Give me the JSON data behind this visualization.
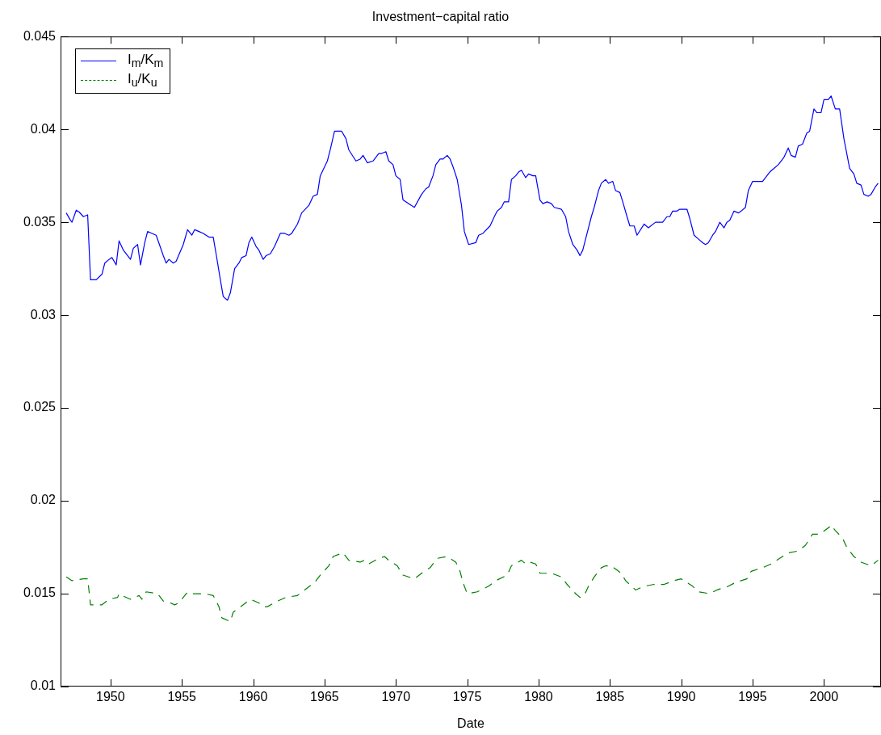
{
  "chart_data": {
    "type": "line",
    "title": "Investment−capital ratio",
    "xlabel": "Date",
    "xlim": [
      1946.5,
      2004
    ],
    "xticks": [
      1950,
      1955,
      1960,
      1965,
      1970,
      1975,
      1980,
      1985,
      1990,
      1995,
      2000
    ],
    "ylim": [
      0.01,
      0.045
    ],
    "yticks": [
      0.01,
      0.015,
      0.02,
      0.025,
      0.03,
      0.035,
      0.04,
      0.045
    ],
    "grid": false,
    "legend": "top left",
    "marker": "none",
    "series": [
      {
        "name": "I$_{m}$/K$_{m}$",
        "color": "#0000ff",
        "line_style": "solid",
        "x": [
          1946.9,
          1947.2,
          1947.3,
          1947.6,
          1947.8,
          1948.1,
          1948.4,
          1948.6,
          1949.0,
          1949.4,
          1949.6,
          1949.9,
          1950.1,
          1950.4,
          1950.6,
          1950.9,
          1951.4,
          1951.6,
          1951.9,
          1952.1,
          1952.4,
          1952.6,
          1952.9,
          1953.2,
          1953.7,
          1953.9,
          1954.1,
          1954.4,
          1954.6,
          1955.1,
          1955.4,
          1955.7,
          1955.9,
          1956.2,
          1956.5,
          1956.7,
          1956.9,
          1957.2,
          1957.4,
          1957.7,
          1957.9,
          1958.2,
          1958.4,
          1958.7,
          1959.0,
          1959.2,
          1959.5,
          1959.7,
          1959.9,
          1960.2,
          1960.4,
          1960.7,
          1960.9,
          1961.2,
          1961.5,
          1961.9,
          1962.2,
          1962.5,
          1962.7,
          1963.1,
          1963.4,
          1963.9,
          1964.2,
          1964.5,
          1964.7,
          1965.2,
          1965.4,
          1965.7,
          1966.2,
          1966.5,
          1966.7,
          1967.2,
          1967.5,
          1967.7,
          1968.0,
          1968.4,
          1968.8,
          1969.0,
          1969.3,
          1969.5,
          1969.8,
          1970.0,
          1970.3,
          1970.5,
          1971.3,
          1971.8,
          1972.1,
          1972.3,
          1972.6,
          1972.8,
          1973.1,
          1973.3,
          1973.6,
          1973.8,
          1974.0,
          1974.3,
          1974.6,
          1974.8,
          1975.1,
          1975.6,
          1975.8,
          1976.1,
          1976.6,
          1976.9,
          1977.1,
          1977.4,
          1977.6,
          1977.9,
          1978.1,
          1978.4,
          1978.6,
          1978.8,
          1979.1,
          1979.3,
          1979.6,
          1979.8,
          1980.1,
          1980.3,
          1980.6,
          1980.9,
          1981.1,
          1981.6,
          1981.9,
          1982.1,
          1982.4,
          1982.7,
          1982.9,
          1983.1,
          1983.4,
          1983.7,
          1983.9,
          1984.2,
          1984.4,
          1984.7,
          1984.9,
          1985.2,
          1985.4,
          1985.7,
          1985.9,
          1986.2,
          1986.4,
          1986.7,
          1986.9,
          1987.4,
          1987.7,
          1988.2,
          1988.7,
          1989.0,
          1989.2,
          1989.4,
          1989.7,
          1989.9,
          1990.2,
          1990.4,
          1990.6,
          1990.9,
          1991.2,
          1991.5,
          1991.7,
          1991.9,
          1992.2,
          1992.4,
          1992.7,
          1993.0,
          1993.2,
          1993.4,
          1993.7,
          1994.0,
          1994.2,
          1994.5,
          1994.7,
          1995.0,
          1995.7,
          1996.2,
          1996.5,
          1996.8,
          1997.0,
          1997.2,
          1997.5,
          1997.7,
          1998.0,
          1998.2,
          1998.5,
          1998.8,
          1999.0,
          1999.3,
          1999.5,
          1999.8,
          2000.0,
          2000.3,
          2000.5,
          2000.8,
          2001.1,
          2001.4,
          2001.8,
          2002.1,
          2002.3,
          2002.6,
          2002.8,
          2003.1,
          2003.3,
          2003.6,
          2003.8
        ],
        "values": [
          0.0355,
          0.0351,
          0.035,
          0.03565,
          0.03555,
          0.0353,
          0.0354,
          0.0319,
          0.0319,
          0.0322,
          0.0328,
          0.033,
          0.0331,
          0.0327,
          0.034,
          0.0335,
          0.033,
          0.0336,
          0.0338,
          0.0327,
          0.0339,
          0.0345,
          0.0344,
          0.0343,
          0.0332,
          0.0328,
          0.033,
          0.0328,
          0.0329,
          0.0338,
          0.0346,
          0.0343,
          0.0346,
          0.0345,
          0.0344,
          0.0343,
          0.0342,
          0.0342,
          0.0333,
          0.0319,
          0.031,
          0.0308,
          0.0312,
          0.0325,
          0.0328,
          0.0331,
          0.0332,
          0.0339,
          0.0342,
          0.0337,
          0.0335,
          0.033,
          0.0332,
          0.0333,
          0.0337,
          0.0344,
          0.0344,
          0.0343,
          0.0344,
          0.0349,
          0.0355,
          0.0359,
          0.0364,
          0.0365,
          0.0375,
          0.0383,
          0.0389,
          0.0399,
          0.0399,
          0.0395,
          0.0389,
          0.0383,
          0.0384,
          0.0386,
          0.0382,
          0.0383,
          0.0387,
          0.0387,
          0.0388,
          0.0383,
          0.0381,
          0.0375,
          0.0373,
          0.0362,
          0.0358,
          0.0365,
          0.0368,
          0.0369,
          0.0375,
          0.0381,
          0.0384,
          0.0384,
          0.0386,
          0.0384,
          0.038,
          0.0373,
          0.0359,
          0.0345,
          0.0338,
          0.0339,
          0.0343,
          0.0344,
          0.0348,
          0.0353,
          0.0356,
          0.0358,
          0.0361,
          0.0361,
          0.0373,
          0.0375,
          0.0377,
          0.0378,
          0.0374,
          0.0376,
          0.0375,
          0.0375,
          0.0362,
          0.036,
          0.0361,
          0.036,
          0.0358,
          0.0357,
          0.0353,
          0.0345,
          0.0338,
          0.0335,
          0.0332,
          0.0335,
          0.0344,
          0.0353,
          0.0358,
          0.0367,
          0.0371,
          0.0373,
          0.0371,
          0.0372,
          0.0367,
          0.0366,
          0.0361,
          0.0353,
          0.0348,
          0.0348,
          0.0343,
          0.0349,
          0.0347,
          0.035,
          0.035,
          0.0353,
          0.0353,
          0.0356,
          0.0356,
          0.0357,
          0.0357,
          0.0357,
          0.0352,
          0.0343,
          0.0341,
          0.0339,
          0.0338,
          0.0339,
          0.0343,
          0.0345,
          0.035,
          0.0347,
          0.035,
          0.0351,
          0.0356,
          0.0355,
          0.0356,
          0.0358,
          0.0367,
          0.0372,
          0.0372,
          0.0377,
          0.0379,
          0.0381,
          0.0383,
          0.0385,
          0.039,
          0.0386,
          0.0385,
          0.0391,
          0.0392,
          0.0398,
          0.0399,
          0.0411,
          0.0409,
          0.0409,
          0.0416,
          0.0416,
          0.0418,
          0.0411,
          0.0411,
          0.0395,
          0.0379,
          0.0376,
          0.0371,
          0.037,
          0.0365,
          0.0364,
          0.0365,
          0.0369,
          0.0371
        ]
      },
      {
        "name": "I$_{u}$/K$_{u}$",
        "color": "#008000",
        "line_style": "dashed",
        "x": [
          1946.9,
          1947.3,
          1948.1,
          1948.4,
          1948.6,
          1949.4,
          1949.9,
          1950.5,
          1950.6,
          1950.8,
          1951.4,
          1952.0,
          1952.2,
          1952.5,
          1953.3,
          1953.7,
          1954.2,
          1954.5,
          1954.8,
          1955.3,
          1955.5,
          1955.8,
          1956.6,
          1957.2,
          1957.6,
          1957.8,
          1958.4,
          1958.6,
          1959.3,
          1959.8,
          1960.4,
          1960.7,
          1961.0,
          1961.7,
          1962.3,
          1963.1,
          1963.6,
          1964.3,
          1964.7,
          1965.3,
          1965.6,
          1966.3,
          1966.7,
          1967.5,
          1967.8,
          1968.1,
          1968.8,
          1969.2,
          1969.5,
          1970.1,
          1970.5,
          1971.3,
          1971.8,
          1972.4,
          1972.9,
          1973.6,
          1974.2,
          1974.5,
          1974.7,
          1975.0,
          1975.7,
          1976.5,
          1977.0,
          1977.8,
          1978.1,
          1978.8,
          1979.1,
          1979.4,
          1979.8,
          1980.1,
          1980.9,
          1981.6,
          1982.0,
          1982.6,
          1982.9,
          1983.2,
          1983.5,
          1983.9,
          1984.4,
          1984.7,
          1985.1,
          1985.8,
          1986.1,
          1986.8,
          1987.4,
          1988.1,
          1988.8,
          1989.5,
          1990.0,
          1990.2,
          1990.8,
          1991.2,
          1992.0,
          1992.5,
          1993.3,
          1993.8,
          1994.6,
          1994.9,
          1995.7,
          1996.3,
          1997.1,
          1997.5,
          1998.2,
          1998.7,
          1999.2,
          1999.7,
          2000.4,
          2000.5,
          2000.8,
          2001.3,
          2001.6,
          2002.1,
          2002.6,
          2003.3,
          2003.8
        ],
        "values": [
          0.0159,
          0.0157,
          0.0158,
          0.0158,
          0.0144,
          0.0144,
          0.0147,
          0.0148,
          0.015,
          0.0149,
          0.0147,
          0.0149,
          0.0147,
          0.0151,
          0.015,
          0.0146,
          0.0145,
          0.0144,
          0.0145,
          0.015,
          0.0151,
          0.015,
          0.015,
          0.0149,
          0.0143,
          0.0137,
          0.0135,
          0.014,
          0.0144,
          0.0147,
          0.0145,
          0.0143,
          0.0143,
          0.0146,
          0.0148,
          0.0149,
          0.0152,
          0.0156,
          0.016,
          0.0165,
          0.017,
          0.0172,
          0.0168,
          0.0167,
          0.0168,
          0.0166,
          0.0169,
          0.017,
          0.0168,
          0.0165,
          0.016,
          0.0158,
          0.0161,
          0.0164,
          0.0169,
          0.017,
          0.0167,
          0.0162,
          0.0156,
          0.015,
          0.0151,
          0.0154,
          0.0157,
          0.016,
          0.0165,
          0.0168,
          0.0166,
          0.0167,
          0.0166,
          0.0161,
          0.0161,
          0.0159,
          0.0155,
          0.015,
          0.0148,
          0.0149,
          0.0154,
          0.0159,
          0.0164,
          0.0165,
          0.0165,
          0.0161,
          0.0157,
          0.0152,
          0.0154,
          0.0155,
          0.0155,
          0.0157,
          0.0158,
          0.0157,
          0.0154,
          0.0151,
          0.015,
          0.0152,
          0.0154,
          0.0156,
          0.0158,
          0.0162,
          0.0164,
          0.0166,
          0.017,
          0.0172,
          0.0173,
          0.0176,
          0.0182,
          0.0182,
          0.0186,
          0.0187,
          0.0184,
          0.018,
          0.0175,
          0.017,
          0.0167,
          0.0165,
          0.0168
        ]
      }
    ]
  }
}
